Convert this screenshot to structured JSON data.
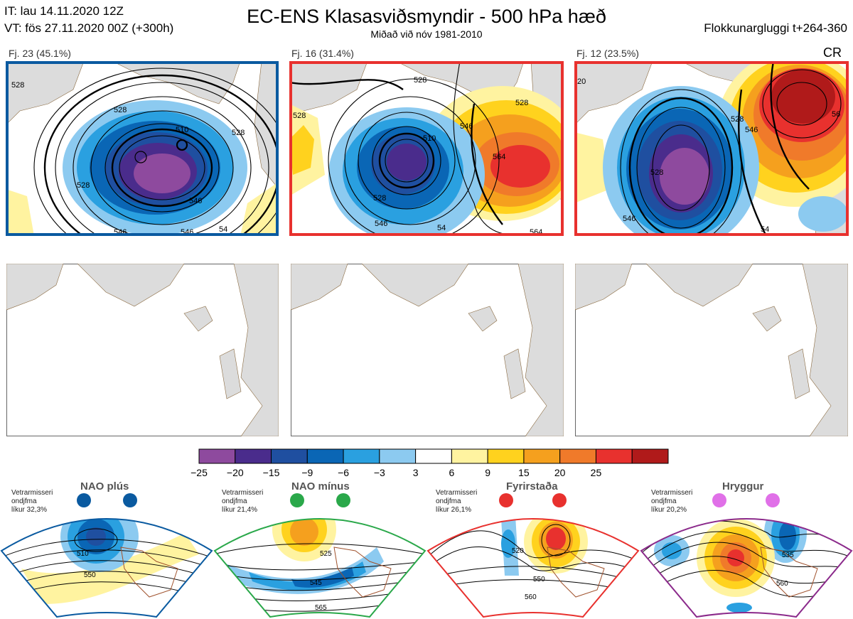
{
  "header": {
    "it_line": "IT: lau 14.11.2020 12Z",
    "vt_line": "VT: fös 27.11.2020 00Z  (+300h)",
    "title": "EC-ENS Klasasviðsmyndir - 500 hPa hæð",
    "subtitle": "Miðað við nóv 1981-2010",
    "window": "Flokkunargluggi t+264-360"
  },
  "clusters": [
    {
      "label": "Fj. 23 (45.1%)",
      "border_color": "#0a5aa0",
      "extra": "",
      "contours": [
        "528",
        "528",
        "510",
        "528",
        "546",
        "546",
        "528",
        "546",
        "54"
      ]
    },
    {
      "label": "Fj. 16 (31.4%)",
      "border_color": "#e8312e",
      "extra": "",
      "contours": [
        "528",
        "528",
        "510",
        "546",
        "564",
        "528",
        "546",
        "564",
        "54",
        "528"
      ]
    },
    {
      "label": "Fj. 12 (23.5%)",
      "border_color": "#e8312e",
      "extra": "CR",
      "contours": [
        "528",
        "546",
        "56",
        "528",
        "546",
        "54",
        "20"
      ]
    }
  ],
  "colorbar": {
    "colors": [
      "#8e4a9e",
      "#4a2c8c",
      "#1f4fa0",
      "#0a66b5",
      "#2aa0e0",
      "#8ccaf0",
      "#ffffff",
      "#fff3a0",
      "#ffd21e",
      "#f5a01e",
      "#f07a2a",
      "#e8312e",
      "#b01a1a"
    ],
    "labels": [
      "−25",
      "−20",
      "−15",
      "−9",
      "−6",
      "−3",
      "3",
      "6",
      "9",
      "15",
      "20",
      "25"
    ]
  },
  "regimes": [
    {
      "name": "NAO plús",
      "stats": [
        "Vetrarmisseri",
        "ondjfma",
        "líkur 32,3%"
      ],
      "dot_color": "#0a5aa0",
      "border_color": "#0a5aa0",
      "contours": [
        "510",
        "550"
      ]
    },
    {
      "name": "NAO mínus",
      "stats": [
        "Vetrarmisseri",
        "ondjfma",
        "líkur 21,4%"
      ],
      "dot_color": "#2aa84a",
      "border_color": "#2aa84a",
      "contours": [
        "525",
        "545",
        "565"
      ]
    },
    {
      "name": "Fyrirstaða",
      "stats": [
        "Vetrarmisseri",
        "ondjfma",
        "líkur 26,1%"
      ],
      "dot_color": "#e8312e",
      "border_color": "#e8312e",
      "contours": [
        "520",
        "550",
        "560"
      ]
    },
    {
      "name": "Hryggur",
      "stats": [
        "Vetrarmisseri",
        "ondjfma",
        "líkur 20,2%"
      ],
      "dot_color": "#e070e8",
      "border_color": "#8b2a8b",
      "contours": [
        "505",
        "535",
        "560"
      ]
    }
  ]
}
